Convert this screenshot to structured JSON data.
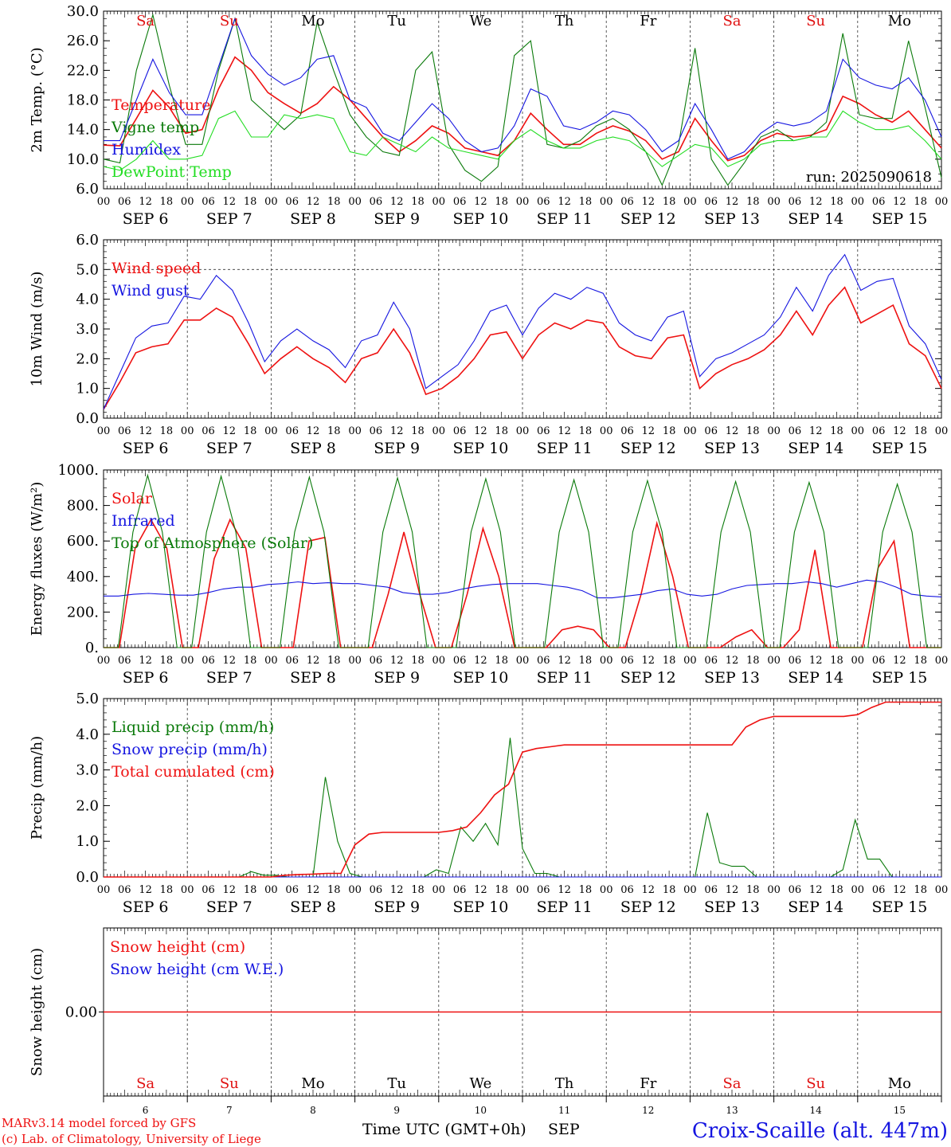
{
  "day_labels": [
    {
      "abbr": "Sa",
      "color": "#e01010"
    },
    {
      "abbr": "Su",
      "color": "#e01010"
    },
    {
      "abbr": "Mo",
      "color": "#000000"
    },
    {
      "abbr": "Tu",
      "color": "#000000"
    },
    {
      "abbr": "We",
      "color": "#000000"
    },
    {
      "abbr": "Th",
      "color": "#000000"
    },
    {
      "abbr": "Fr",
      "color": "#000000"
    },
    {
      "abbr": "Sa",
      "color": "#e01010"
    },
    {
      "abbr": "Su",
      "color": "#e01010"
    },
    {
      "abbr": "Mo",
      "color": "#000000"
    }
  ],
  "date_labels": [
    "SEP  6",
    "SEP  7",
    "SEP  8",
    "SEP  9",
    "SEP 10",
    "SEP 11",
    "SEP 12",
    "SEP 13",
    "SEP 14",
    "SEP 15"
  ],
  "day_numbers": [
    "6",
    "7",
    "8",
    "9",
    "10",
    "11",
    "12",
    "13",
    "14",
    "15"
  ],
  "hour_ticks": [
    "00",
    "06",
    "12",
    "18"
  ],
  "x_axis": {
    "start": "2025-09-06 00 UTC",
    "end": "2025-09-16 00 UTC",
    "step_hours": 6
  },
  "run_label": "run: 2025090618",
  "footer": {
    "credit1": "MARv3.14 model forced by GFS",
    "credit2": "(c) Lab. of Climatology, University of Liege",
    "xlabel": "Time UTC (GMT+0h)",
    "month": "SEP",
    "station": "Croix-Scaille (alt. 447m)"
  },
  "colors": {
    "red": "#ee1111",
    "green": "#0a7a0a",
    "blue": "#1515e0",
    "lightgreen": "#22dd22"
  },
  "chart_data": [
    {
      "type": "line",
      "ylabel": "2m Temp. (°C)",
      "ylim": [
        6,
        30
      ],
      "yticks": [
        "6.0",
        "10.0",
        "14.0",
        "18.0",
        "22.0",
        "26.0",
        "30.0"
      ],
      "x_step_hours": 6,
      "series": [
        {
          "name": "Temperature",
          "color": "red",
          "values": [
            11.9,
            11.8,
            15.5,
            19.3,
            17.0,
            13.5,
            14.0,
            19.5,
            23.8,
            22.0,
            19.0,
            17.5,
            16.2,
            17.5,
            19.8,
            18.0,
            15.5,
            13.0,
            11.0,
            12.5,
            14.5,
            13.5,
            11.5,
            11.0,
            10.5,
            12.5,
            16.2,
            14.0,
            12.0,
            12.0,
            13.5,
            14.5,
            13.8,
            12.5,
            10.0,
            11.0,
            15.5,
            12.5,
            9.8,
            10.5,
            12.5,
            13.5,
            13.0,
            13.2,
            14.0,
            18.5,
            17.5,
            16.0,
            15.0,
            16.5,
            14.0,
            11.5
          ]
        },
        {
          "name": "Vigne temp",
          "color": "green",
          "values": [
            10.0,
            9.5,
            22.0,
            29.5,
            20.0,
            12.0,
            12.0,
            22.0,
            29.0,
            18.0,
            16.0,
            14.0,
            16.0,
            28.5,
            22.0,
            16.0,
            13.0,
            11.0,
            10.5,
            22.0,
            24.5,
            12.0,
            8.5,
            7.0,
            9.0,
            24.0,
            26.0,
            12.0,
            11.5,
            12.5,
            14.5,
            15.5,
            14.0,
            11.0,
            6.5,
            12.0,
            25.0,
            10.0,
            6.5,
            9.5,
            13.0,
            14.0,
            12.5,
            13.0,
            15.0,
            27.0,
            16.0,
            15.5,
            15.5,
            26.0,
            17.0,
            7.5
          ]
        },
        {
          "name": "Humidex",
          "color": "blue",
          "values": [
            12.5,
            12.5,
            18.0,
            23.5,
            19.0,
            16.0,
            16.0,
            22.5,
            29.0,
            24.0,
            21.5,
            20.0,
            21.0,
            23.5,
            24.0,
            18.0,
            17.0,
            13.5,
            12.5,
            15.0,
            17.5,
            15.5,
            12.5,
            11.0,
            11.5,
            14.5,
            19.5,
            18.5,
            14.5,
            14.0,
            15.0,
            16.5,
            16.0,
            14.0,
            11.0,
            12.5,
            17.5,
            14.0,
            10.0,
            11.0,
            13.5,
            15.0,
            14.5,
            15.0,
            16.5,
            23.5,
            21.0,
            20.0,
            19.5,
            21.0,
            18.0,
            13.0
          ]
        },
        {
          "name": "DewPoint Temp",
          "color": "lightgreen",
          "values": [
            9.0,
            8.5,
            10.0,
            12.5,
            10.0,
            10.0,
            10.5,
            15.5,
            16.5,
            13.0,
            13.0,
            16.0,
            15.5,
            16.0,
            15.5,
            11.0,
            10.5,
            13.0,
            12.0,
            11.0,
            13.0,
            11.5,
            11.0,
            10.5,
            10.0,
            12.5,
            14.0,
            12.5,
            11.5,
            11.5,
            12.5,
            13.0,
            12.5,
            11.0,
            9.0,
            10.5,
            12.0,
            11.5,
            9.0,
            10.0,
            12.0,
            12.5,
            12.5,
            13.0,
            13.0,
            16.5,
            15.0,
            14.0,
            14.0,
            14.5,
            12.5,
            10.0
          ]
        }
      ]
    },
    {
      "type": "line",
      "ylabel": "10m Wind (m/s)",
      "ylim": [
        0,
        6
      ],
      "yticks": [
        "0.0",
        "1.0",
        "2.0",
        "3.0",
        "4.0",
        "5.0",
        "6.0"
      ],
      "reference_line": 5.0,
      "x_step_hours": 6,
      "series": [
        {
          "name": "Wind speed",
          "color": "red",
          "values": [
            0.3,
            1.2,
            2.2,
            2.4,
            2.5,
            3.3,
            3.3,
            3.7,
            3.4,
            2.5,
            1.5,
            2.0,
            2.4,
            2.0,
            1.7,
            1.2,
            2.0,
            2.2,
            3.0,
            2.2,
            0.8,
            1.0,
            1.4,
            2.0,
            2.8,
            2.9,
            2.0,
            2.8,
            3.2,
            3.0,
            3.3,
            3.2,
            2.4,
            2.1,
            2.0,
            2.7,
            2.8,
            1.0,
            1.5,
            1.8,
            2.0,
            2.3,
            2.8,
            3.6,
            2.8,
            3.8,
            4.4,
            3.2,
            3.5,
            3.8,
            2.5,
            2.1,
            1.0
          ]
        },
        {
          "name": "Wind gust",
          "color": "blue",
          "values": [
            0.3,
            1.5,
            2.7,
            3.1,
            3.2,
            4.1,
            4.0,
            4.8,
            4.3,
            3.2,
            1.9,
            2.6,
            3.0,
            2.6,
            2.3,
            1.7,
            2.6,
            2.8,
            3.9,
            3.0,
            1.0,
            1.4,
            1.8,
            2.6,
            3.6,
            3.8,
            2.8,
            3.7,
            4.2,
            4.0,
            4.4,
            4.2,
            3.2,
            2.8,
            2.6,
            3.4,
            3.6,
            1.4,
            2.0,
            2.2,
            2.5,
            2.8,
            3.4,
            4.4,
            3.6,
            4.8,
            5.5,
            4.3,
            4.6,
            4.7,
            3.1,
            2.5,
            1.3
          ]
        }
      ]
    },
    {
      "type": "line",
      "ylabel": "Energy fluxes (W/m²)",
      "ylim": [
        0,
        1000
      ],
      "yticks": [
        "0.",
        "200.",
        "400.",
        "600.",
        "800.",
        "1000."
      ],
      "x_step_hours": 6,
      "series": [
        {
          "name": "Solar",
          "color": "red",
          "values": [
            0,
            0,
            560,
            720,
            560,
            0,
            0,
            500,
            720,
            560,
            0,
            0,
            0,
            600,
            620,
            0,
            0,
            0,
            300,
            650,
            300,
            0,
            0,
            300,
            670,
            400,
            0,
            0,
            0,
            100,
            120,
            100,
            0,
            0,
            300,
            700,
            400,
            0,
            0,
            0,
            60,
            100,
            0,
            0,
            100,
            550,
            0,
            0,
            0,
            450,
            600,
            0,
            0,
            0
          ]
        },
        {
          "name": "Infrared",
          "color": "blue",
          "values": [
            290,
            290,
            300,
            305,
            300,
            295,
            295,
            310,
            330,
            340,
            340,
            355,
            360,
            370,
            360,
            365,
            360,
            360,
            350,
            340,
            310,
            300,
            300,
            310,
            330,
            345,
            355,
            360,
            360,
            360,
            350,
            340,
            320,
            280,
            280,
            290,
            300,
            320,
            330,
            300,
            290,
            300,
            330,
            350,
            355,
            360,
            360,
            370,
            360,
            340,
            360,
            380,
            370,
            340,
            300,
            290,
            285
          ]
        },
        {
          "name": "Top of Atmosphere (Solar)",
          "color": "green",
          "values": [
            0,
            0,
            650,
            970,
            650,
            0,
            0,
            650,
            965,
            650,
            0,
            0,
            0,
            650,
            960,
            650,
            0,
            0,
            0,
            650,
            955,
            650,
            0,
            0,
            0,
            650,
            950,
            650,
            0,
            0,
            0,
            650,
            945,
            650,
            0,
            0,
            650,
            940,
            650,
            0,
            0,
            0,
            650,
            935,
            650,
            0,
            0,
            650,
            930,
            650,
            0,
            0,
            0,
            650,
            920,
            650,
            0,
            0
          ]
        }
      ]
    },
    {
      "type": "line",
      "ylabel": "Precip (mm/h)",
      "ylim": [
        0,
        5
      ],
      "yticks": [
        "0.0",
        "1.0",
        "2.0",
        "3.0",
        "4.0",
        "5.0"
      ],
      "x_step_hours": 6,
      "series": [
        {
          "name": "Liquid precip (mm/h)",
          "color": "green",
          "values": [
            0,
            0,
            0,
            0,
            0,
            0,
            0,
            0,
            0,
            0,
            0,
            0,
            0.15,
            0.05,
            0.05,
            0,
            0,
            0,
            2.8,
            1.0,
            0.1,
            0,
            0,
            0,
            0,
            0,
            0,
            0.2,
            0.1,
            1.4,
            1.0,
            1.5,
            0.9,
            3.9,
            0.8,
            0.1,
            0.1,
            0,
            0,
            0,
            0,
            0,
            0,
            0,
            0,
            0,
            0,
            0,
            0,
            1.8,
            0.4,
            0.3,
            0.3,
            0,
            0,
            0,
            0,
            0,
            0,
            0,
            0.2,
            1.6,
            0.5,
            0.5,
            0,
            0,
            0,
            0,
            0
          ]
        },
        {
          "name": "Snow precip (mm/h)",
          "color": "blue",
          "values": [
            0,
            0,
            0,
            0,
            0,
            0,
            0,
            0,
            0,
            0,
            0,
            0,
            0,
            0,
            0,
            0,
            0,
            0,
            0,
            0,
            0,
            0,
            0,
            0,
            0,
            0,
            0,
            0,
            0,
            0,
            0,
            0,
            0,
            0,
            0,
            0,
            0,
            0,
            0,
            0,
            0,
            0
          ]
        },
        {
          "name": "Total cumulated (cm)",
          "color": "red",
          "values": [
            0,
            0,
            0,
            0,
            0,
            0,
            0,
            0,
            0,
            0,
            0,
            0,
            0,
            0.05,
            0.07,
            0.08,
            0.1,
            0.1,
            0.9,
            1.2,
            1.25,
            1.25,
            1.25,
            1.25,
            1.25,
            1.3,
            1.4,
            1.8,
            2.3,
            2.6,
            3.5,
            3.6,
            3.65,
            3.7,
            3.7,
            3.7,
            3.7,
            3.7,
            3.7,
            3.7,
            3.7,
            3.7,
            3.7,
            3.7,
            3.7,
            3.7,
            4.2,
            4.4,
            4.5,
            4.5,
            4.5,
            4.5,
            4.5,
            4.5,
            4.55,
            4.75,
            4.9,
            4.9,
            4.9,
            4.9,
            4.9
          ]
        }
      ]
    },
    {
      "type": "line",
      "ylabel": "Snow height (cm)",
      "ylim": [
        -1,
        1
      ],
      "yticks": [
        "0.00"
      ],
      "x_step_hours": 6,
      "series": [
        {
          "name": "Snow height (cm)",
          "color": "red",
          "values": [
            0,
            0
          ]
        },
        {
          "name": "Snow height (cm W.E.)",
          "color": "blue",
          "values": []
        }
      ]
    }
  ]
}
